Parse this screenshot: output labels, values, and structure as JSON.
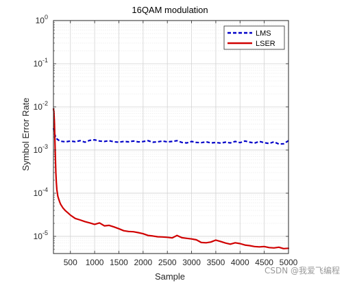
{
  "chart_data": {
    "type": "line",
    "title": "16QAM modulation",
    "xlabel": "Sample",
    "ylabel": "Symbol Error Rate",
    "xlim": [
      150,
      5000
    ],
    "ylim": [
      4e-06,
      1
    ],
    "yscale": "log",
    "grid": true,
    "legend_position": "top-right",
    "x_ticks": [
      500,
      1000,
      1500,
      2000,
      2500,
      3000,
      3500,
      4000,
      4500,
      5000
    ],
    "x_tick_labels": [
      "500",
      "1000",
      "1500",
      "2000",
      "2500",
      "3000",
      "3500",
      "4000",
      "4500",
      "5000"
    ],
    "y_ticks": [
      1e-05,
      0.0001,
      0.001,
      0.01,
      0.1,
      1
    ],
    "y_tick_labels": [
      {
        "base": "10",
        "exp": "-5"
      },
      {
        "base": "10",
        "exp": "-4"
      },
      {
        "base": "10",
        "exp": "-3"
      },
      {
        "base": "10",
        "exp": "-2"
      },
      {
        "base": "10",
        "exp": "-1"
      },
      {
        "base": "10",
        "exp": "0"
      }
    ],
    "series": [
      {
        "name": "LMS",
        "color": "#0000c8",
        "style": "dashed",
        "x": [
          150,
          170,
          200,
          250,
          300,
          400,
          500,
          600,
          700,
          800,
          900,
          1000,
          1100,
          1200,
          1300,
          1400,
          1500,
          1600,
          1700,
          1800,
          1900,
          2000,
          2100,
          2200,
          2300,
          2400,
          2500,
          2600,
          2700,
          2800,
          2900,
          3000,
          3100,
          3200,
          3300,
          3400,
          3500,
          3600,
          3700,
          3800,
          3900,
          4000,
          4100,
          4200,
          4300,
          4400,
          4500,
          4600,
          4700,
          4800,
          4900,
          5000
        ],
        "y": [
          0.0032,
          0.0025,
          0.0019,
          0.0017,
          0.0016,
          0.00155,
          0.00162,
          0.00156,
          0.00165,
          0.00152,
          0.00168,
          0.00172,
          0.00162,
          0.00158,
          0.00165,
          0.00155,
          0.00152,
          0.00158,
          0.00155,
          0.00162,
          0.00154,
          0.00157,
          0.00165,
          0.00152,
          0.00155,
          0.00162,
          0.00154,
          0.00158,
          0.00165,
          0.0015,
          0.00146,
          0.00158,
          0.0015,
          0.00148,
          0.00155,
          0.00146,
          0.0015,
          0.00145,
          0.00152,
          0.00146,
          0.00158,
          0.00148,
          0.00162,
          0.00152,
          0.00145,
          0.00158,
          0.00148,
          0.00142,
          0.00155,
          0.00138,
          0.0014,
          0.00165
        ]
      },
      {
        "name": "LSER",
        "color": "#d00000",
        "style": "solid",
        "x": [
          150,
          160,
          170,
          180,
          190,
          200,
          210,
          220,
          240,
          260,
          280,
          300,
          350,
          400,
          450,
          500,
          600,
          700,
          800,
          900,
          1000,
          1100,
          1200,
          1300,
          1400,
          1500,
          1600,
          1700,
          1800,
          1900,
          2000,
          2100,
          2200,
          2300,
          2400,
          2500,
          2600,
          2700,
          2800,
          2900,
          3000,
          3100,
          3200,
          3300,
          3400,
          3500,
          3600,
          3700,
          3800,
          3900,
          4000,
          4100,
          4200,
          4300,
          4400,
          4500,
          4600,
          4700,
          4800,
          4900,
          5000
        ],
        "y": [
          0.009,
          0.0075,
          0.0045,
          0.0018,
          0.0007,
          0.0003,
          0.00018,
          0.00012,
          8.5e-05,
          7.2e-05,
          6.2e-05,
          5.5e-05,
          4.5e-05,
          3.9e-05,
          3.5e-05,
          3.1e-05,
          2.6e-05,
          2.4e-05,
          2.2e-05,
          2.05e-05,
          1.9e-05,
          2.05e-05,
          1.75e-05,
          1.8e-05,
          1.65e-05,
          1.5e-05,
          1.35e-05,
          1.3e-05,
          1.28e-05,
          1.22e-05,
          1.15e-05,
          1.05e-05,
          1.02e-05,
          9.8e-06,
          9.7e-06,
          9.5e-06,
          9.2e-06,
          1.05e-05,
          9.3e-06,
          9e-06,
          8.7e-06,
          8.3e-06,
          7.2e-06,
          7.1e-06,
          7.4e-06,
          8.2e-06,
          7.6e-06,
          7e-06,
          6.6e-06,
          7.1e-06,
          6.8e-06,
          6.3e-06,
          6.1e-06,
          5.8e-06,
          5.7e-06,
          5.8e-06,
          5.5e-06,
          5.4e-06,
          5.6e-06,
          5.2e-06,
          5.3e-06
        ]
      }
    ]
  },
  "watermark": "CSDN @我爱飞编程"
}
